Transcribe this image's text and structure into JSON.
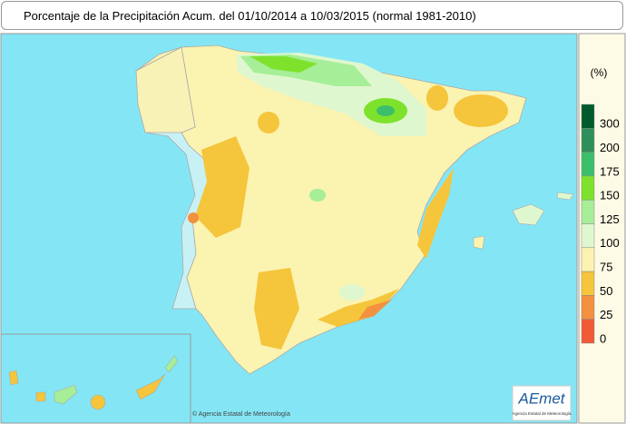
{
  "header": {
    "title": "Porcentaje de la Precipitación Acum. del 01/10/2014 a  10/03/2015  (normal 1981-2010)"
  },
  "legend": {
    "unit": "(%)",
    "ticks": [
      300,
      200,
      175,
      150,
      125,
      100,
      75,
      50,
      25,
      0
    ],
    "colors": [
      "#005a2b",
      "#2f8f5a",
      "#3cbf6a",
      "#7ee22c",
      "#a6ee98",
      "#dff7cf",
      "#fbf3b0",
      "#f5c53c",
      "#f2913f",
      "#f05a36"
    ]
  },
  "credit": "© Agencia Estatal de Meteorología",
  "logo": {
    "name": "AEmet",
    "subtitle": "Agencia Estatal de Meteorología"
  }
}
